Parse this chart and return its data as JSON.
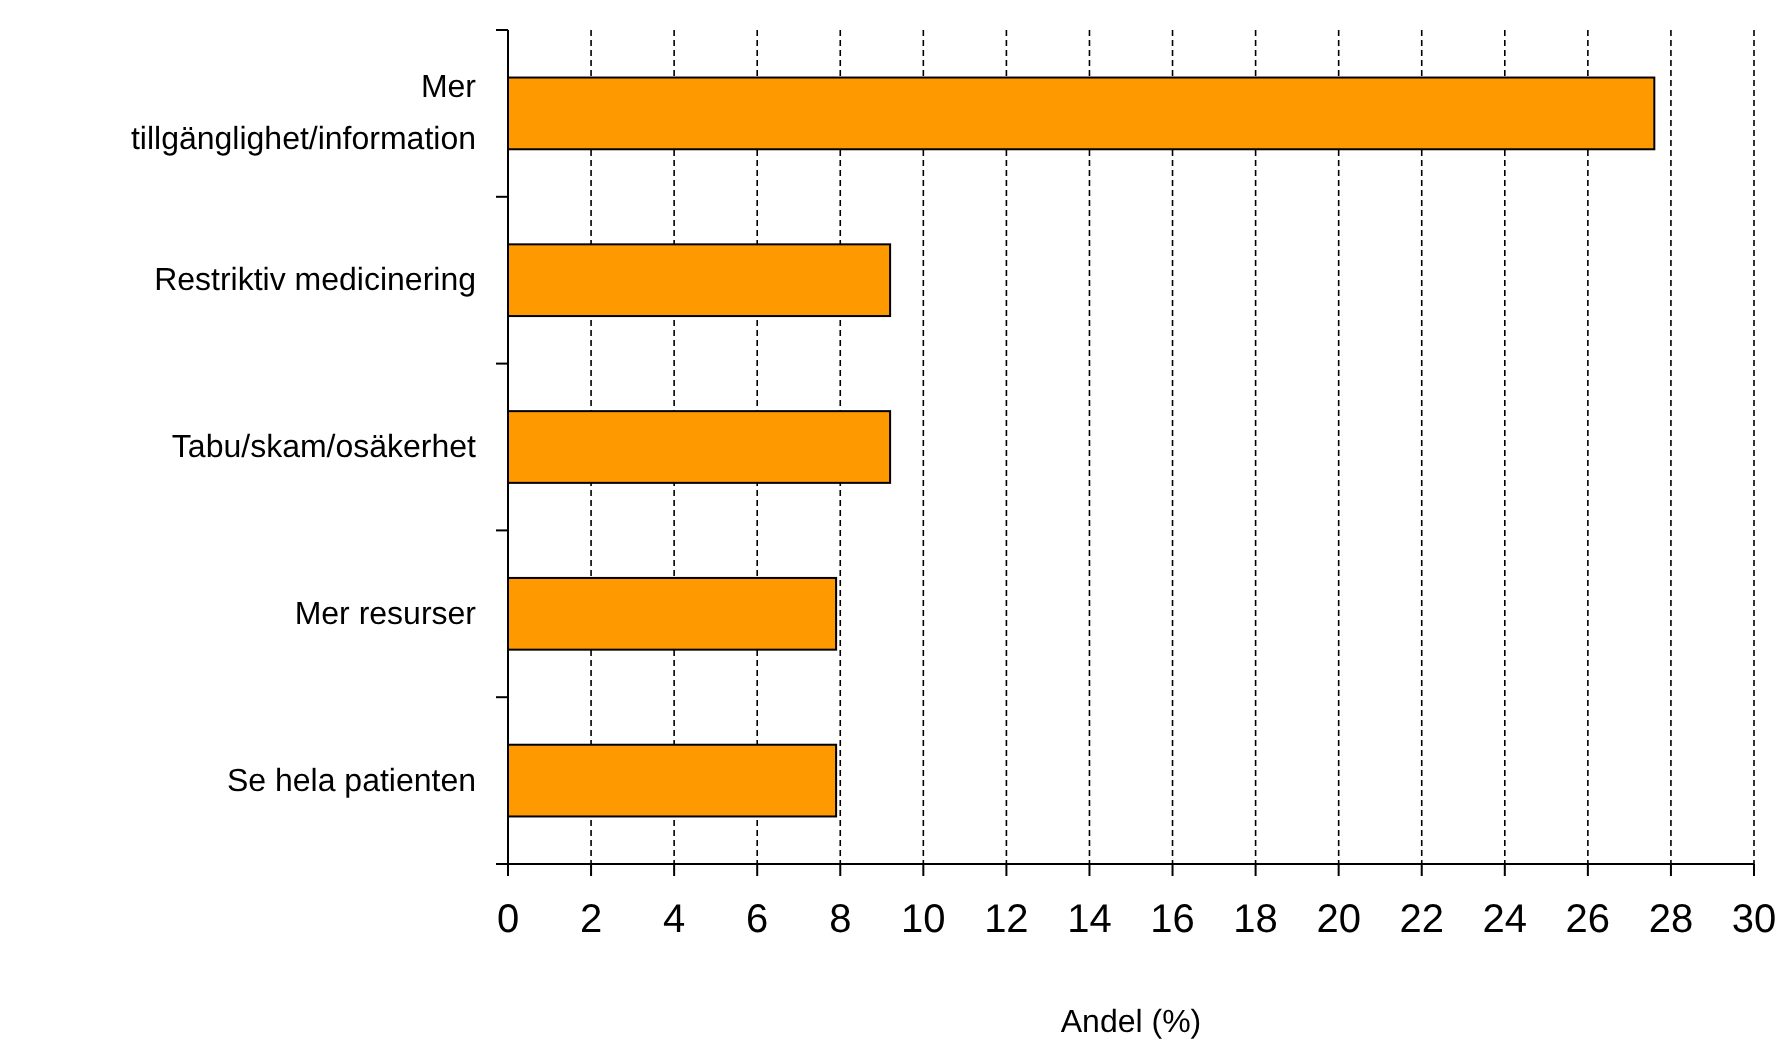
{
  "chart_data": {
    "type": "bar",
    "orientation": "horizontal",
    "xlabel": "Andel (%)",
    "categories": [
      "Mer tillgänglighet/information",
      "Restriktiv medicinering",
      "Tabu/skam/osäkerhet",
      "Mer resurser",
      "Se hela patienten"
    ],
    "values": [
      27.6,
      9.2,
      9.2,
      7.9,
      7.9
    ],
    "color": "#ff9900",
    "xlim": [
      0,
      30
    ],
    "xticks": [
      0,
      2,
      4,
      6,
      8,
      10,
      12,
      14,
      16,
      18,
      20,
      22,
      24,
      26,
      28,
      30
    ],
    "grid": "x",
    "line_style": "dashed"
  }
}
